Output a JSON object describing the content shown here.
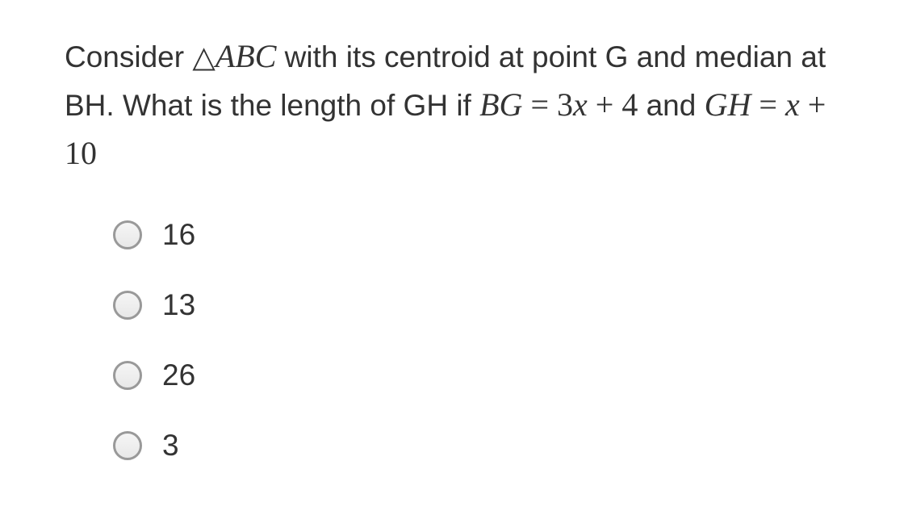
{
  "question": {
    "part1": "Consider ",
    "triangle_symbol": "△",
    "triangle_label": "ABC",
    "part2": " with its centroid at point G and median at BH. What is the length of GH if ",
    "eq1_lhs": "BG",
    "eq1_eq": " = ",
    "eq1_rhs_3": "3",
    "eq1_rhs_x": "x",
    "eq1_rhs_plus4": " + 4",
    "and_text": " and ",
    "eq2_lhs": "GH",
    "eq2_eq": " = ",
    "eq2_rhs_x": "x",
    "eq2_rhs_plus10": " + 10"
  },
  "options": [
    {
      "label": "16"
    },
    {
      "label": "13"
    },
    {
      "label": "26"
    },
    {
      "label": "3"
    }
  ],
  "colors": {
    "text": "#333333",
    "background": "#ffffff",
    "radio_border": "#999999"
  },
  "typography": {
    "body_fontsize": 37,
    "math_fontsize": 40
  }
}
